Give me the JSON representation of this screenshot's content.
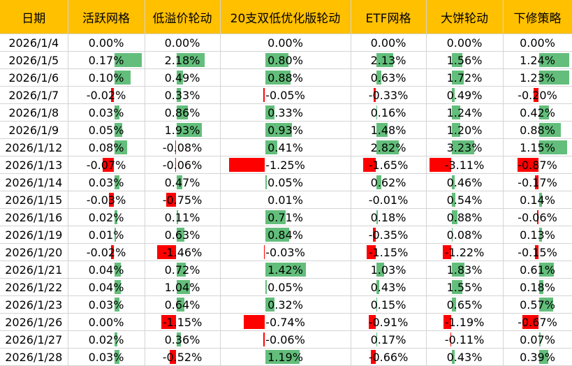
{
  "columns": [
    "日期",
    "活跃网格",
    "低溢价轮动",
    "20支双低优化版轮动",
    "ETF网格",
    "大饼轮动",
    "下修策略"
  ],
  "colors": {
    "header_bg": "#ffc000",
    "positive_bar": "#63be7b",
    "negative_bar": "#ff0000",
    "grid": "#d4d4d4"
  },
  "rows": [
    {
      "date": "2026/1/4",
      "v": [
        "0.00%",
        "0.00%",
        "0.00%",
        "0.00%",
        "0.00%",
        "0.00%"
      ],
      "n": [
        0,
        0,
        0,
        0,
        0,
        0
      ]
    },
    {
      "date": "2026/1/5",
      "v": [
        "0.17%",
        "2.18%",
        "0.80%",
        "2.13%",
        "1.56%",
        "1.24%"
      ],
      "n": [
        0.17,
        2.18,
        0.8,
        2.13,
        1.56,
        1.24
      ]
    },
    {
      "date": "2026/1/6",
      "v": [
        "0.10%",
        "0.49%",
        "0.88%",
        "0.63%",
        "1.72%",
        "1.23%"
      ],
      "n": [
        0.1,
        0.49,
        0.88,
        0.63,
        1.72,
        1.23
      ]
    },
    {
      "date": "2026/1/7",
      "v": [
        "-0.02%",
        "0.33%",
        "-0.05%",
        "-0.33%",
        "0.49%",
        "-0.20%"
      ],
      "n": [
        -0.02,
        0.33,
        -0.05,
        -0.33,
        0.49,
        -0.2
      ]
    },
    {
      "date": "2026/1/8",
      "v": [
        "0.03%",
        "0.86%",
        "0.33%",
        "0.16%",
        "1.24%",
        "0.42%"
      ],
      "n": [
        0.03,
        0.86,
        0.33,
        0.16,
        1.24,
        0.42
      ]
    },
    {
      "date": "2026/1/9",
      "v": [
        "0.05%",
        "1.93%",
        "0.93%",
        "1.48%",
        "1.20%",
        "0.88%"
      ],
      "n": [
        0.05,
        1.93,
        0.93,
        1.48,
        1.2,
        0.88
      ]
    },
    {
      "date": "2026/1/12",
      "v": [
        "0.08%",
        "-0.08%",
        "0.41%",
        "2.82%",
        "3.23%",
        "1.15%"
      ],
      "n": [
        0.08,
        -0.08,
        0.41,
        2.82,
        3.23,
        1.15
      ]
    },
    {
      "date": "2026/1/13",
      "v": [
        "-0.07%",
        "-0.06%",
        "-1.25%",
        "-1.65%",
        "-3.11%",
        "-0.87%"
      ],
      "n": [
        -0.07,
        -0.06,
        -1.25,
        -1.65,
        -3.11,
        -0.87
      ]
    },
    {
      "date": "2026/1/14",
      "v": [
        "0.03%",
        "0.47%",
        "0.05%",
        "0.62%",
        "0.46%",
        "-0.17%"
      ],
      "n": [
        0.03,
        0.47,
        0.05,
        0.62,
        0.46,
        -0.17
      ]
    },
    {
      "date": "2026/1/15",
      "v": [
        "-0.03%",
        "-0.75%",
        "0.01%",
        "-0.01%",
        "0.54%",
        "0.14%"
      ],
      "n": [
        -0.03,
        -0.75,
        0.01,
        -0.01,
        0.54,
        0.14
      ]
    },
    {
      "date": "2026/1/16",
      "v": [
        "0.02%",
        "0.11%",
        "0.71%",
        "0.18%",
        "0.88%",
        "-0.06%"
      ],
      "n": [
        0.02,
        0.11,
        0.71,
        0.18,
        0.88,
        -0.06
      ]
    },
    {
      "date": "2026/1/19",
      "v": [
        "0.01%",
        "0.63%",
        "0.84%",
        "-0.35%",
        "0.08%",
        "0.13%"
      ],
      "n": [
        0.01,
        0.63,
        0.84,
        -0.35,
        0.08,
        0.13
      ]
    },
    {
      "date": "2026/1/20",
      "v": [
        "-0.02%",
        "-1.46%",
        "-0.03%",
        "-1.15%",
        "-1.22%",
        "-0.15%"
      ],
      "n": [
        -0.02,
        -1.46,
        -0.03,
        -1.15,
        -1.22,
        -0.15
      ]
    },
    {
      "date": "2026/1/21",
      "v": [
        "0.04%",
        "0.72%",
        "1.42%",
        "1.03%",
        "1.83%",
        "0.61%"
      ],
      "n": [
        0.04,
        0.72,
        1.42,
        1.03,
        1.83,
        0.61
      ]
    },
    {
      "date": "2026/1/22",
      "v": [
        "0.04%",
        "1.04%",
        "0.05%",
        "0.43%",
        "1.55%",
        "0.18%"
      ],
      "n": [
        0.04,
        1.04,
        0.05,
        0.43,
        1.55,
        0.18
      ]
    },
    {
      "date": "2026/1/23",
      "v": [
        "0.03%",
        "0.64%",
        "0.32%",
        "0.15%",
        "0.65%",
        "0.57%"
      ],
      "n": [
        0.03,
        0.64,
        0.32,
        0.15,
        0.65,
        0.57
      ]
    },
    {
      "date": "2026/1/26",
      "v": [
        "0.00%",
        "-1.15%",
        "-0.74%",
        "-0.91%",
        "-1.19%",
        "-0.67%"
      ],
      "n": [
        0,
        -1.15,
        -0.74,
        -0.91,
        -1.19,
        -0.67
      ]
    },
    {
      "date": "2026/1/27",
      "v": [
        "0.02%",
        "0.36%",
        "-0.06%",
        "0.17%",
        "-0.11%",
        "0.07%"
      ],
      "n": [
        0.02,
        0.36,
        -0.06,
        0.17,
        -0.11,
        0.07
      ]
    },
    {
      "date": "2026/1/28",
      "v": [
        "0.03%",
        "-0.52%",
        "1.19%",
        "-0.66%",
        "0.43%",
        "0.39%"
      ],
      "n": [
        0.03,
        -0.52,
        1.19,
        -0.66,
        0.43,
        0.39
      ]
    }
  ]
}
